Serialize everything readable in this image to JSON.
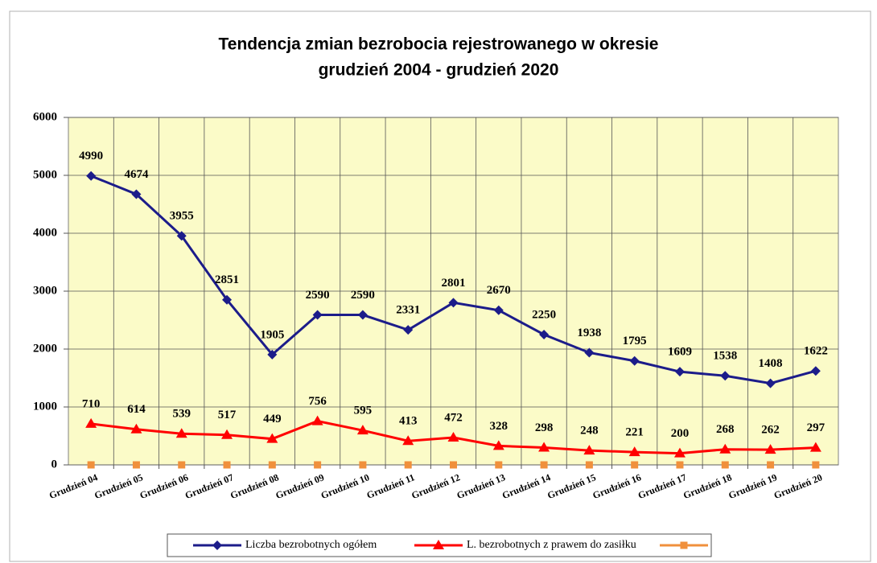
{
  "chart_data": {
    "type": "line",
    "title": [
      "Tendencja zmian bezrobocia rejestrowanego w okresie",
      "grudzień 2004 - grudzień 2020"
    ],
    "categories": [
      "Grudzień 04",
      "Grudzień 05",
      "Grudzień 06",
      "Grudzień 07",
      "Grudzień 08",
      "Grudzień 09",
      "Grudzień 10",
      "Grudzień 11",
      "Grudzień 12",
      "Grudzień 13",
      "Grudzień 14",
      "Grudzień 15",
      "Grudzień 16",
      "Grudzień 17",
      "Grudzień 18",
      "Grudzień 19",
      "Grudzień 20"
    ],
    "series": [
      {
        "name": "Liczba bezrobotnych ogółem",
        "color": "#1c1c8a",
        "marker": "diamond",
        "data_labels": true,
        "values": [
          4990,
          4674,
          3955,
          2851,
          1905,
          2590,
          2590,
          2331,
          2801,
          2670,
          2250,
          1938,
          1795,
          1609,
          1538,
          1408,
          1622
        ]
      },
      {
        "name": "L. bezrobotnych z prawem do zasiłku",
        "color": "#ff0000",
        "marker": "triangle",
        "data_labels": true,
        "values": [
          710,
          614,
          539,
          517,
          449,
          756,
          595,
          413,
          472,
          328,
          298,
          248,
          221,
          200,
          268,
          262,
          297
        ]
      },
      {
        "color": "#f0903c",
        "marker": "square",
        "data_labels": false,
        "values": [
          0,
          0,
          0,
          0,
          0,
          0,
          0,
          0,
          0,
          0,
          0,
          0,
          0,
          0,
          0,
          0,
          0
        ]
      }
    ],
    "ylim": [
      0,
      6000
    ],
    "yticks": [
      0,
      1000,
      2000,
      3000,
      4000,
      5000,
      6000
    ],
    "grid": true,
    "legend": "bottom"
  }
}
